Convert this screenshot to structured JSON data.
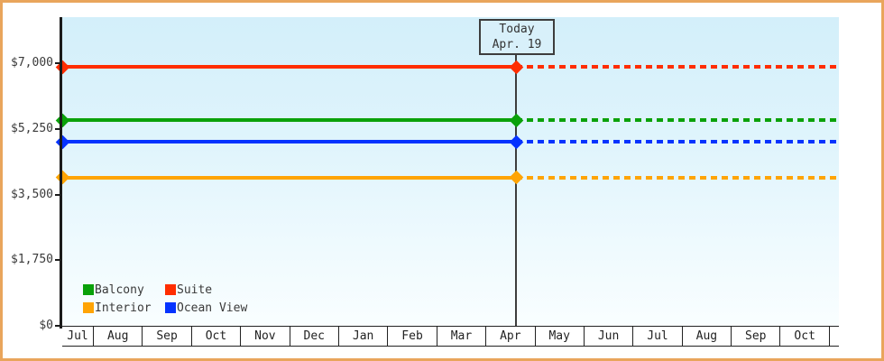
{
  "window": {
    "frame_border_color": "#E9A55C",
    "plot_bg_top": "#D3EFFA",
    "plot_bg_bottom": "#F9FEFF"
  },
  "chart_data": {
    "type": "line",
    "title": "",
    "xlabel": "",
    "ylabel": "",
    "grid": false,
    "ylim": [
      0,
      8230
    ],
    "y_ticks": [
      {
        "value": 0,
        "label": "$0"
      },
      {
        "value": 1750,
        "label": "$1,750"
      },
      {
        "value": 3500,
        "label": "$3,500"
      },
      {
        "value": 5250,
        "label": "$5,250"
      },
      {
        "value": 7000,
        "label": "$7,000"
      }
    ],
    "x_months": [
      "Jul",
      "Aug",
      "Sep",
      "Oct",
      "Nov",
      "Dec",
      "Jan",
      "Feb",
      "Mar",
      "Apr",
      "May",
      "Jun",
      "Jul",
      "Aug",
      "Sep",
      "Oct"
    ],
    "today": {
      "label": "Today",
      "date": "Apr. 19",
      "month_index": 9,
      "month_fraction": 0.6
    },
    "series": [
      {
        "name": "Balcony",
        "color": "#0AA10A",
        "value": 5480,
        "solid_until": "today",
        "dotted_after": true
      },
      {
        "name": "Suite",
        "color": "#FF2D00",
        "value": 6900,
        "solid_until": "today",
        "dotted_after": true
      },
      {
        "name": "Interior",
        "color": "#FFA405",
        "value": 3950,
        "solid_until": "today",
        "dotted_after": true
      },
      {
        "name": "Ocean View",
        "color": "#0533FF",
        "value": 4900,
        "solid_until": "today",
        "dotted_after": true
      }
    ],
    "legend": {
      "position": "bottom-left",
      "order": [
        "Balcony",
        "Suite",
        "Interior",
        "Ocean View"
      ],
      "columns": 2
    }
  }
}
